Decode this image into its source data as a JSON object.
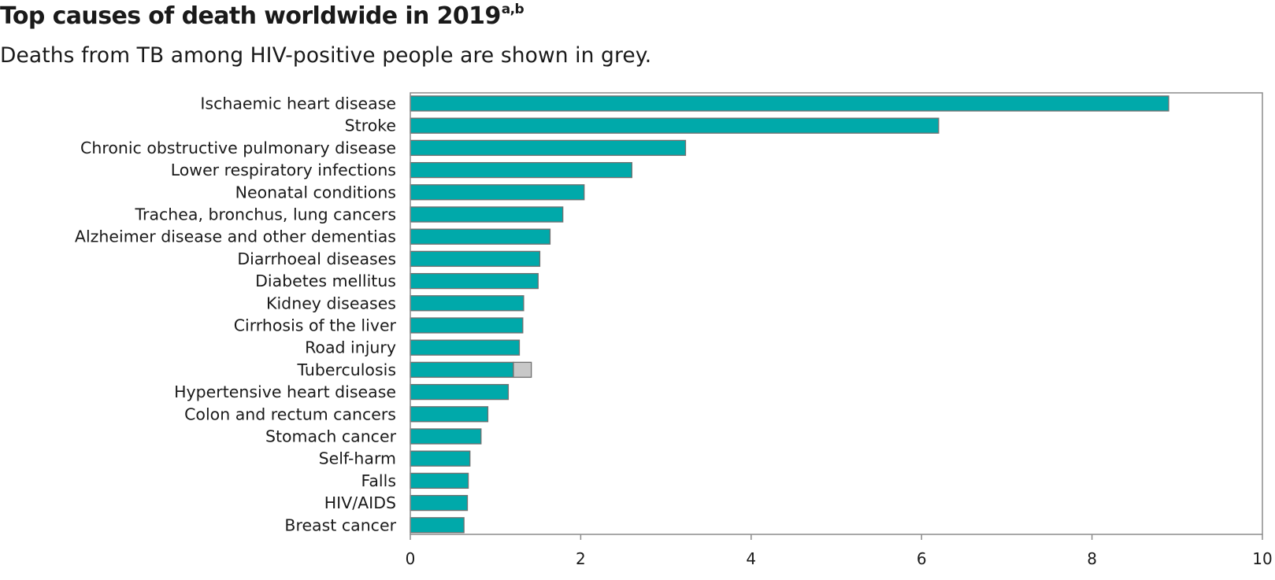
{
  "header": {
    "title": "Top causes of death worldwide in 2019",
    "title_footnote": "a,b",
    "subtitle": "Deaths from TB among HIV-positive people are shown in grey."
  },
  "colors": {
    "main_series": "#00a9aa",
    "hiv_tb_series": "#c8c8c8",
    "bar_outline": "#6f6f6f",
    "axis": "#8c8c8c"
  },
  "chart_data": {
    "type": "bar",
    "orientation": "horizontal",
    "stacked": true,
    "categories": [
      "Ischaemic heart disease",
      "Stroke",
      "Chronic obstructive pulmonary disease",
      "Lower respiratory infections",
      "Neonatal conditions",
      "Trachea, bronchus, lung cancers",
      "Alzheimer disease and other dementias",
      "Diarrhoeal diseases",
      "Diabetes mellitus",
      "Kidney diseases",
      "Cirrhosis of the liver",
      "Road injury",
      "Tuberculosis",
      "Hypertensive heart disease",
      "Colon and rectum cancers",
      "Stomach cancer",
      "Self-harm",
      "Falls",
      "HIV/AIDS",
      "Breast cancer"
    ],
    "series": [
      {
        "values": [
          8.9,
          6.2,
          3.23,
          2.6,
          2.04,
          1.79,
          1.64,
          1.52,
          1.5,
          1.33,
          1.32,
          1.28,
          1.21,
          1.15,
          0.91,
          0.83,
          0.7,
          0.68,
          0.67,
          0.63
        ]
      },
      {
        "values": [
          0,
          0,
          0,
          0,
          0,
          0,
          0,
          0,
          0,
          0,
          0,
          0,
          0.21,
          0,
          0,
          0,
          0,
          0,
          0,
          0
        ]
      }
    ],
    "xlim": [
      0,
      10
    ],
    "xticks": [
      0,
      2,
      4,
      6,
      8,
      10
    ],
    "xlabel": "",
    "ylabel": "",
    "grid": false,
    "legend": "none"
  }
}
